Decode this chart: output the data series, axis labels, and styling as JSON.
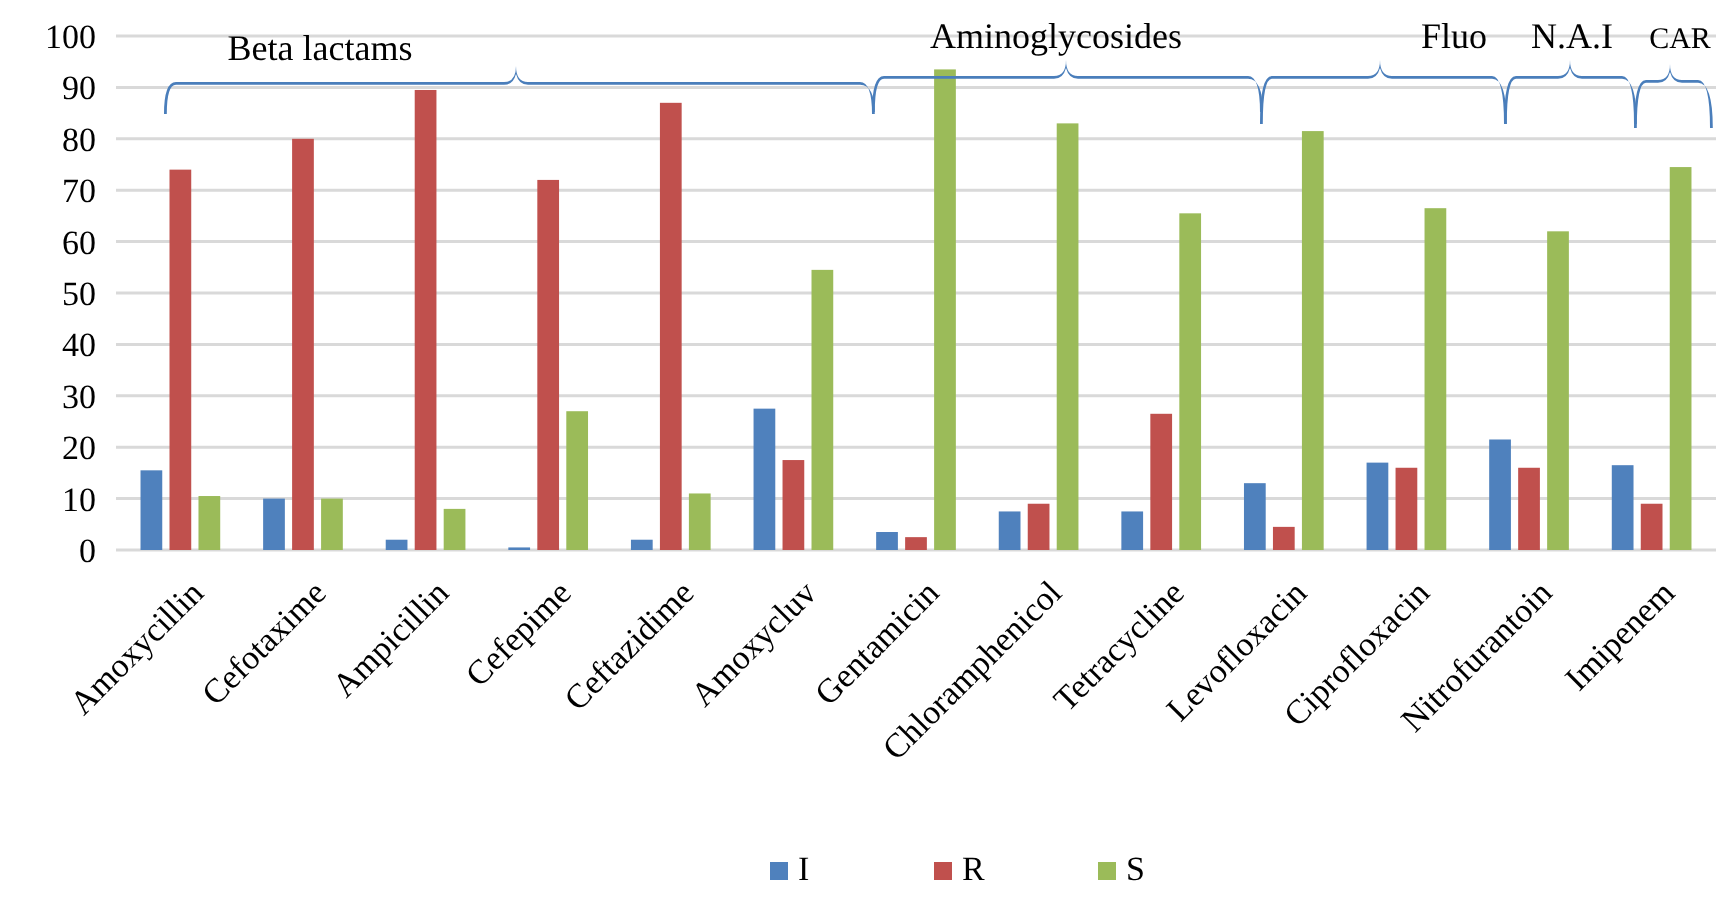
{
  "chart_data": {
    "type": "bar",
    "categories": [
      "Amoxycillin",
      "Cefotaxime",
      "Ampicillin",
      "Cefepime",
      "Ceftazidime",
      "Amoxycluv",
      "Gentamicin",
      "Chloramphenicol",
      "Tetracycline",
      "Levofloxacin",
      "Ciprofloxacin",
      "Nitrofurantoin",
      "Imipenem"
    ],
    "series": [
      {
        "name": "I",
        "color": "#4f81bd",
        "values": [
          15.5,
          10,
          2,
          0.5,
          2,
          27.5,
          3.5,
          7.5,
          7.5,
          13,
          17,
          21.5,
          16.5
        ]
      },
      {
        "name": "R",
        "color": "#c0504d",
        "values": [
          74,
          80,
          89.5,
          72,
          87,
          17.5,
          2.5,
          9,
          26.5,
          4.5,
          16,
          16,
          9
        ]
      },
      {
        "name": "S",
        "color": "#9bbb59",
        "values": [
          10.5,
          10,
          8,
          27,
          11,
          54.5,
          93.5,
          83,
          65.5,
          81.5,
          66.5,
          62,
          74.5
        ]
      }
    ],
    "ylim": [
      0,
      100
    ],
    "yticks": [
      0,
      10,
      20,
      30,
      40,
      50,
      60,
      70,
      80,
      90,
      100
    ],
    "grid": "y",
    "legend": "bottom",
    "annotations": [
      "Beta lactams",
      "Aminoglycosides",
      "Fluo",
      "N.A.I",
      "CAR"
    ]
  }
}
